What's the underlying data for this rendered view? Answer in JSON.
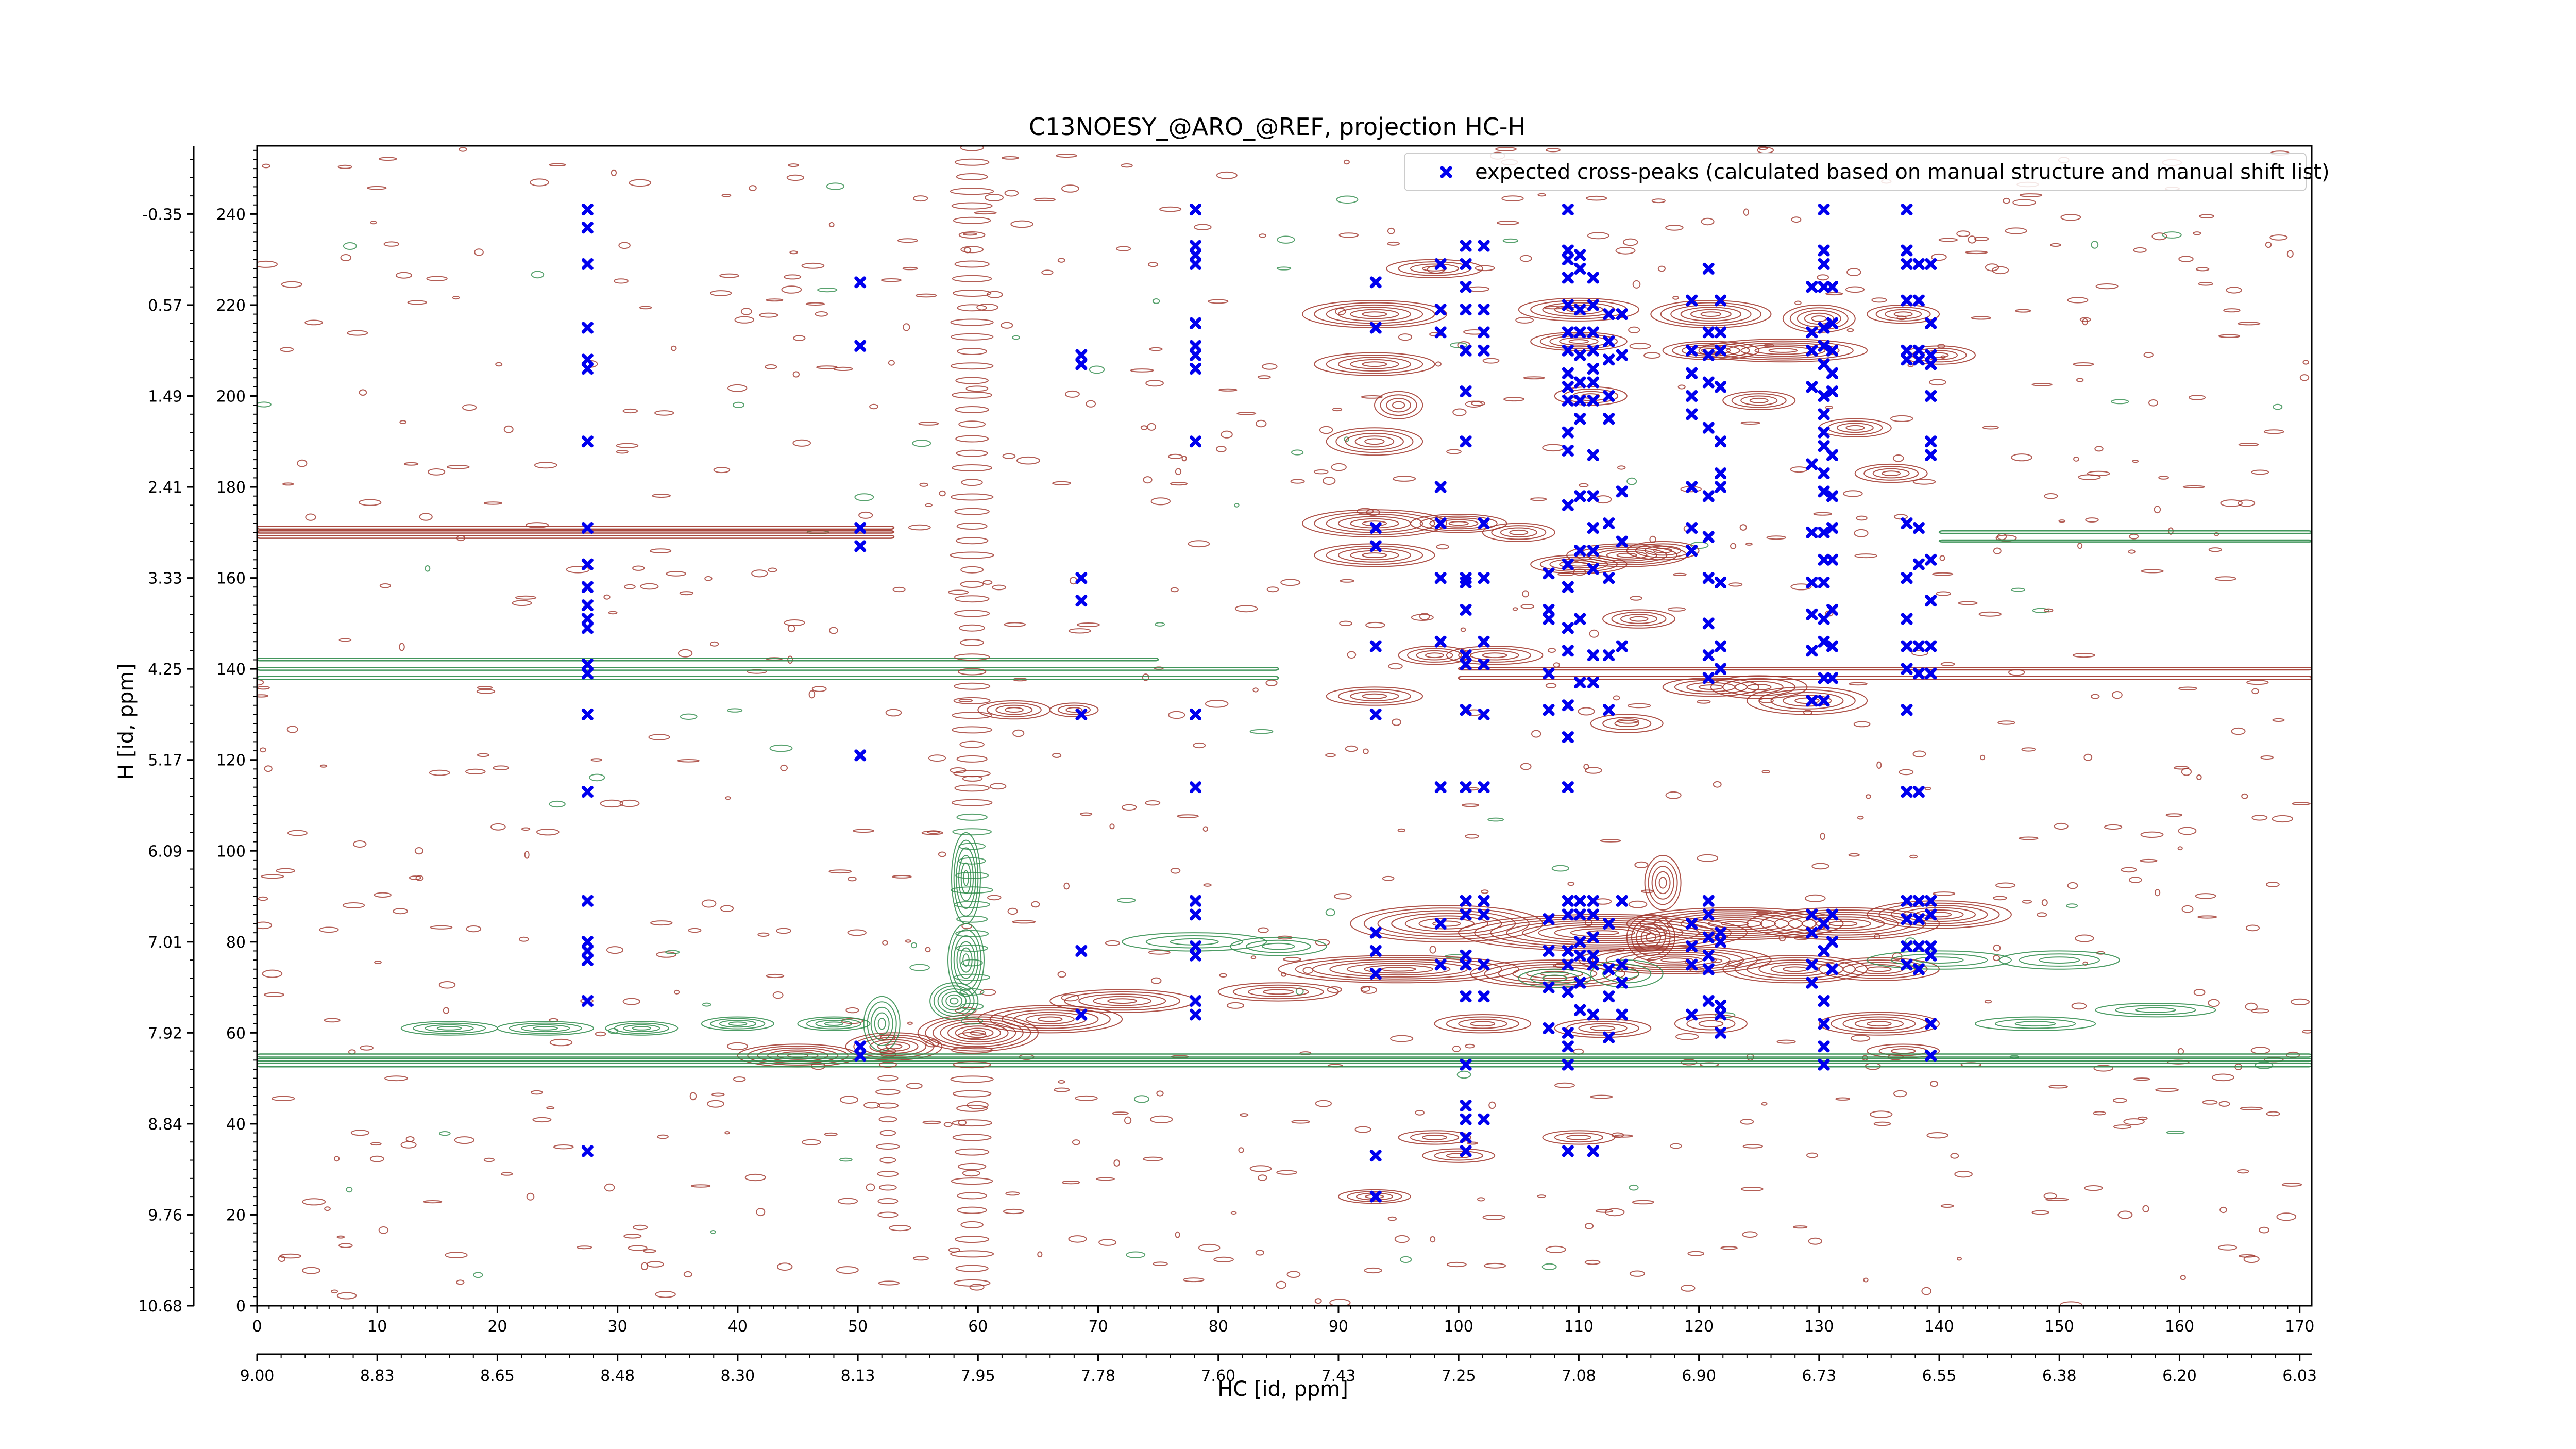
{
  "chart_data": {
    "type": "scatter",
    "title": "C13NOESY_@ARO_@REF, projection HC-H",
    "xlabel": "HC [id, ppm]",
    "ylabel": "H [id, ppm]",
    "grid": false,
    "legend_position": "top-right",
    "xlim": [
      0,
      171
    ],
    "ylim": [
      0,
      255
    ],
    "x_ticks_index": [
      "0",
      "10",
      "20",
      "30",
      "40",
      "50",
      "60",
      "70",
      "80",
      "90",
      "100",
      "110",
      "120",
      "130",
      "140",
      "150",
      "160",
      "170"
    ],
    "x_ticks_ppm": [
      "9.00",
      "8.83",
      "8.65",
      "8.48",
      "8.30",
      "8.13",
      "7.95",
      "7.78",
      "7.60",
      "7.43",
      "7.25",
      "7.08",
      "6.90",
      "6.73",
      "6.55",
      "6.38",
      "6.20",
      "6.03"
    ],
    "y_ticks_index": [
      "0",
      "20",
      "40",
      "60",
      "80",
      "100",
      "120",
      "140",
      "160",
      "180",
      "200",
      "220",
      "240"
    ],
    "y_ticks_ppm": [
      "10.68",
      "9.76",
      "8.84",
      "7.92",
      "7.01",
      "6.09",
      "5.17",
      "4.25",
      "3.33",
      "2.41",
      "1.49",
      "0.57",
      "-0.35"
    ],
    "colors": {
      "positive_contour": "#a0352a",
      "negative_contour": "#2e8b4a",
      "expected_peak": "#0000ee"
    },
    "series": [
      {
        "name": "expected cross-peaks (calculated based on manual structure and manual shift list)",
        "marker": "x-filled",
        "color": "#0000ee",
        "columns": [
          {
            "x": 27.5,
            "y": [
              241,
              237,
              229,
              215,
              208,
              206,
              190,
              171,
              163,
              158,
              154,
              151,
              149,
              141,
              139,
              130,
              113,
              89,
              80,
              78,
              76,
              67,
              34
            ]
          },
          {
            "x": 50.2,
            "y": [
              225,
              211,
              171,
              167,
              121,
              57,
              55
            ]
          },
          {
            "x": 68.6,
            "y": [
              209,
              207,
              160,
              155,
              130,
              78,
              64
            ]
          },
          {
            "x": 78.1,
            "y": [
              241,
              233,
              231,
              229,
              216,
              211,
              209,
              206,
              190,
              130,
              114,
              89,
              86,
              79,
              77,
              67,
              64
            ]
          },
          {
            "x": 93.1,
            "y": [
              225,
              215,
              171,
              167,
              145,
              130,
              82,
              78,
              73,
              33,
              24
            ]
          },
          {
            "x": 98.5,
            "y": [
              229,
              219,
              214,
              180,
              172,
              160,
              146,
              114,
              84,
              75
            ]
          },
          {
            "x": 100.6,
            "y": [
              233,
              229,
              224,
              219,
              210,
              201,
              190,
              160,
              159,
              153,
              143,
              141,
              131,
              114,
              89,
              86,
              77,
              75,
              68,
              53,
              44,
              41,
              37,
              34
            ]
          },
          {
            "x": 102.1,
            "y": [
              233,
              219,
              214,
              210,
              172,
              160,
              146,
              141,
              130,
              114,
              89,
              86,
              75,
              68,
              41
            ]
          },
          {
            "x": 107.5,
            "y": [
              161,
              153,
              151,
              139,
              131,
              85,
              78,
              70,
              61
            ]
          },
          {
            "x": 109.1,
            "y": [
              241,
              232,
              230,
              226,
              220,
              214,
              210,
              205,
              202,
              199,
              192,
              188,
              176,
              163,
              158,
              149,
              144,
              132,
              125,
              114,
              89,
              86,
              78,
              75,
              69,
              60,
              57,
              53,
              34
            ]
          },
          {
            "x": 110.1,
            "y": [
              231,
              228,
              219,
              214,
              209,
              203,
              199,
              195,
              178,
              166,
              151,
              137,
              89,
              86,
              80,
              77,
              71,
              65
            ]
          },
          {
            "x": 111.2,
            "y": [
              226,
              220,
              214,
              210,
              206,
              203,
              199,
              187,
              178,
              171,
              166,
              162,
              143,
              137,
              89,
              86,
              81,
              77,
              75,
              64,
              34
            ]
          },
          {
            "x": 112.5,
            "y": [
              218,
              212,
              208,
              200,
              195,
              172,
              160,
              143,
              131,
              84,
              74,
              68,
              59
            ]
          },
          {
            "x": 113.6,
            "y": [
              218,
              209,
              179,
              168,
              145,
              89,
              75,
              71,
              64
            ]
          },
          {
            "x": 119.4,
            "y": [
              221,
              210,
              205,
              200,
              196,
              180,
              171,
              166,
              84,
              79,
              75,
              64
            ]
          },
          {
            "x": 120.8,
            "y": [
              228,
              214,
              209,
              203,
              193,
              178,
              169,
              160,
              150,
              143,
              138,
              89,
              86,
              81,
              77,
              74,
              67
            ]
          },
          {
            "x": 121.8,
            "y": [
              221,
              214,
              210,
              202,
              190,
              183,
              180,
              159,
              145,
              140,
              82,
              80,
              66,
              64,
              60
            ]
          },
          {
            "x": 129.4,
            "y": [
              224,
              214,
              210,
              202,
              185,
              170,
              159,
              152,
              144,
              133,
              86,
              82,
              75,
              71
            ]
          },
          {
            "x": 130.4,
            "y": [
              241,
              232,
              229,
              224,
              215,
              211,
              207,
              200,
              196,
              192,
              189,
              183,
              179,
              170,
              164,
              159,
              151,
              146,
              138,
              133,
              84,
              78,
              67,
              62,
              57,
              53
            ]
          },
          {
            "x": 131.1,
            "y": [
              224,
              216,
              210,
              205,
              201,
              187,
              178,
              171,
              164,
              153,
              145,
              138,
              86,
              80,
              74
            ]
          },
          {
            "x": 137.3,
            "y": [
              241,
              232,
              229,
              221,
              210,
              208,
              172,
              160,
              151,
              145,
              140,
              131,
              113,
              89,
              85,
              79,
              75
            ]
          },
          {
            "x": 138.3,
            "y": [
              229,
              221,
              210,
              208,
              171,
              163,
              145,
              139,
              113,
              89,
              85,
              79,
              74
            ]
          },
          {
            "x": 139.3,
            "y": [
              229,
              216,
              209,
              207,
              200,
              190,
              187,
              164,
              155,
              145,
              139,
              89,
              86,
              79,
              77,
              62,
              55
            ]
          }
        ]
      }
    ]
  }
}
